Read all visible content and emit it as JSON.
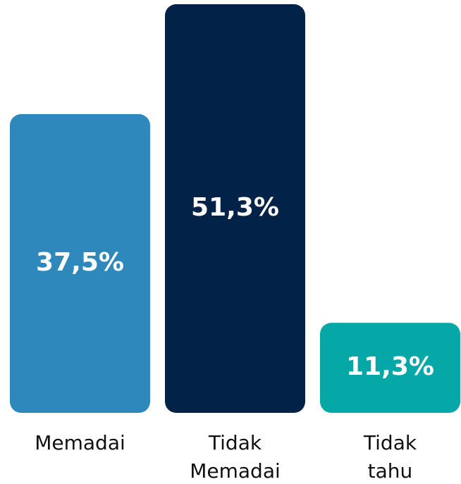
{
  "chart_data": {
    "type": "bar",
    "categories": [
      "Memadai",
      "Tidak Memadai",
      "Tidak tahu"
    ],
    "values": [
      37.5,
      51.3,
      11.3
    ],
    "value_labels": [
      "37,5%",
      "51,3%",
      "11,3%"
    ],
    "colors": [
      "#2e88bb",
      "#022247",
      "#06a7a7"
    ]
  }
}
